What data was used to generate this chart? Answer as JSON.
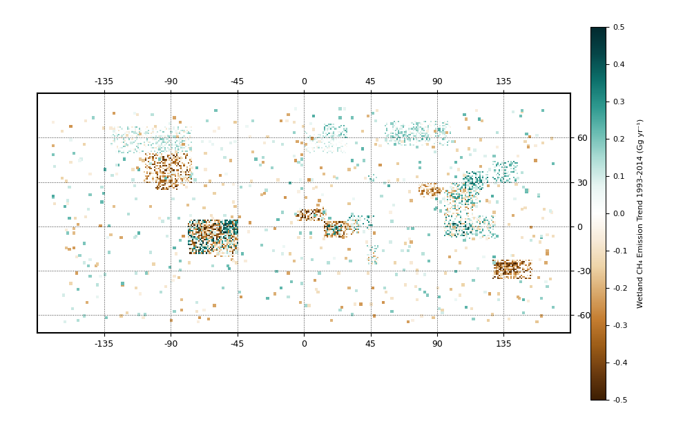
{
  "colorbar_label": "Wetland CH₄ Emission Trend 1993-2014 (Gg yr⁻¹)",
  "vmin": -0.5,
  "vmax": 0.5,
  "lon_ticks": [
    -135,
    -90,
    -45,
    0,
    45,
    90,
    135
  ],
  "lat_ticks": [
    -60,
    -30,
    0,
    30,
    60
  ],
  "colorbar_ticks": [
    -0.5,
    -0.4,
    -0.3,
    -0.2,
    -0.1,
    0.0,
    0.1,
    0.2,
    0.3,
    0.4,
    0.5
  ],
  "map_xlim": [
    -180,
    180
  ],
  "map_ylim": [
    -72,
    90
  ],
  "figsize": [
    9.89,
    6.43
  ],
  "dpi": 100,
  "cmap_colors_neg": [
    "#3d1f03",
    "#6b3a0a",
    "#9c5c18",
    "#c47d30",
    "#d9a86a",
    "#edd4a8",
    "#f7ead8"
  ],
  "cmap_colors_pos": [
    "#e8f5f2",
    "#b0ddd6",
    "#6bbdb4",
    "#2e9990",
    "#0d7068",
    "#054a4e",
    "#022830"
  ]
}
